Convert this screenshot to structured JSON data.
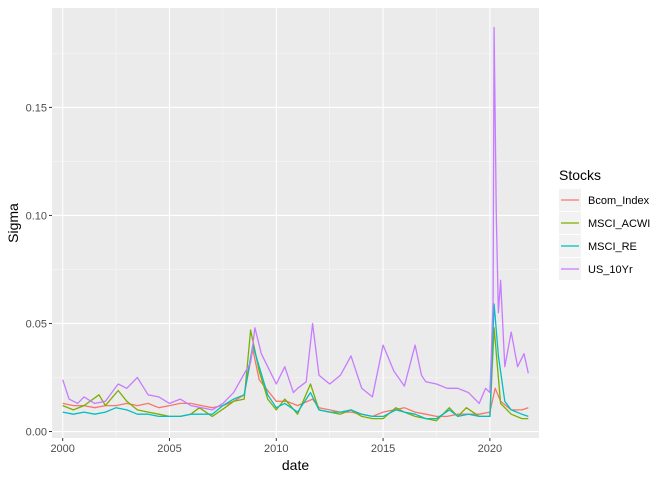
{
  "chart_data": {
    "type": "line",
    "title": "",
    "xlabel": "date",
    "ylabel": "Sigma",
    "xlim": [
      1999.5,
      2022.3
    ],
    "ylim": [
      -0.003,
      0.196
    ],
    "x_ticks": [
      2000,
      2005,
      2010,
      2015,
      2020
    ],
    "x_tick_labels": [
      "2000",
      "2005",
      "2010",
      "2015",
      "2020"
    ],
    "y_ticks": [
      0.0,
      0.05,
      0.1,
      0.15
    ],
    "y_tick_labels": [
      "0.00",
      "0.05",
      "0.10",
      "0.15"
    ],
    "grid": true,
    "legend": {
      "title": "Stocks",
      "placement": "right",
      "entries": [
        "Bcom_Index",
        "MSCI_ACWI",
        "MSCI_RE",
        "US_10Yr"
      ]
    },
    "series": [
      {
        "name": "Bcom_Index",
        "color": "#F8766D",
        "x": [
          2000.0,
          2000.5,
          2001.0,
          2001.5,
          2002.0,
          2002.5,
          2003.0,
          2003.5,
          2004.0,
          2004.5,
          2005.0,
          2005.5,
          2006.0,
          2006.5,
          2007.0,
          2007.5,
          2008.0,
          2008.5,
          2008.9,
          2009.2,
          2009.6,
          2010.0,
          2010.5,
          2011.0,
          2011.7,
          2012.0,
          2012.5,
          2013.0,
          2013.5,
          2014.0,
          2014.5,
          2015.0,
          2015.5,
          2016.0,
          2016.5,
          2017.0,
          2017.5,
          2018.0,
          2018.5,
          2019.0,
          2019.5,
          2020.0,
          2020.25,
          2020.5,
          2021.0,
          2021.5,
          2021.8
        ],
        "y": [
          0.013,
          0.012,
          0.012,
          0.011,
          0.012,
          0.012,
          0.013,
          0.012,
          0.013,
          0.011,
          0.012,
          0.013,
          0.013,
          0.012,
          0.011,
          0.012,
          0.014,
          0.017,
          0.038,
          0.024,
          0.019,
          0.014,
          0.014,
          0.012,
          0.015,
          0.011,
          0.01,
          0.009,
          0.009,
          0.008,
          0.007,
          0.009,
          0.01,
          0.011,
          0.009,
          0.008,
          0.007,
          0.007,
          0.008,
          0.008,
          0.008,
          0.009,
          0.02,
          0.014,
          0.01,
          0.01,
          0.011
        ]
      },
      {
        "name": "MSCI_ACWI",
        "color": "#7CAE00",
        "x": [
          2000.0,
          2000.5,
          2001.0,
          2001.7,
          2002.0,
          2002.6,
          2003.0,
          2003.5,
          2004.0,
          2004.5,
          2005.0,
          2005.5,
          2006.0,
          2006.4,
          2007.0,
          2007.6,
          2008.0,
          2008.5,
          2008.8,
          2009.2,
          2009.6,
          2010.0,
          2010.4,
          2011.0,
          2011.6,
          2012.0,
          2012.5,
          2013.0,
          2013.5,
          2014.0,
          2014.5,
          2015.0,
          2015.6,
          2016.0,
          2016.5,
          2017.0,
          2017.5,
          2018.1,
          2018.5,
          2018.9,
          2019.5,
          2020.0,
          2020.2,
          2020.5,
          2021.0,
          2021.5,
          2021.8
        ],
        "y": [
          0.012,
          0.01,
          0.012,
          0.017,
          0.012,
          0.019,
          0.014,
          0.01,
          0.009,
          0.008,
          0.007,
          0.007,
          0.008,
          0.011,
          0.007,
          0.011,
          0.014,
          0.015,
          0.047,
          0.028,
          0.015,
          0.01,
          0.015,
          0.008,
          0.022,
          0.01,
          0.009,
          0.008,
          0.01,
          0.007,
          0.006,
          0.006,
          0.011,
          0.009,
          0.007,
          0.006,
          0.005,
          0.011,
          0.007,
          0.011,
          0.007,
          0.007,
          0.048,
          0.013,
          0.008,
          0.006,
          0.006
        ]
      },
      {
        "name": "MSCI_RE",
        "color": "#00BFC4",
        "x": [
          2000.0,
          2000.5,
          2001.0,
          2001.5,
          2002.0,
          2002.5,
          2003.0,
          2003.5,
          2004.0,
          2004.5,
          2005.0,
          2005.5,
          2006.0,
          2006.5,
          2007.0,
          2007.5,
          2008.0,
          2008.5,
          2008.9,
          2009.2,
          2009.6,
          2010.0,
          2010.4,
          2011.0,
          2011.6,
          2012.0,
          2012.5,
          2013.0,
          2013.5,
          2014.0,
          2014.5,
          2015.0,
          2015.6,
          2016.0,
          2016.5,
          2017.0,
          2017.5,
          2018.1,
          2018.5,
          2019.0,
          2019.5,
          2020.0,
          2020.2,
          2020.4,
          2020.7,
          2021.0,
          2021.5,
          2021.8
        ],
        "y": [
          0.009,
          0.008,
          0.009,
          0.008,
          0.009,
          0.011,
          0.01,
          0.008,
          0.008,
          0.007,
          0.007,
          0.007,
          0.008,
          0.008,
          0.008,
          0.012,
          0.015,
          0.017,
          0.04,
          0.03,
          0.017,
          0.011,
          0.013,
          0.009,
          0.018,
          0.01,
          0.009,
          0.009,
          0.01,
          0.008,
          0.007,
          0.007,
          0.01,
          0.009,
          0.008,
          0.006,
          0.006,
          0.01,
          0.007,
          0.008,
          0.007,
          0.007,
          0.059,
          0.035,
          0.014,
          0.01,
          0.008,
          0.007
        ]
      },
      {
        "name": "US_10Yr",
        "color": "#C77CFF",
        "x": [
          2000.0,
          2000.3,
          2000.7,
          2001.0,
          2001.5,
          2002.0,
          2002.6,
          2003.0,
          2003.5,
          2004.0,
          2004.5,
          2005.0,
          2005.5,
          2006.0,
          2006.5,
          2007.0,
          2007.5,
          2008.0,
          2008.4,
          2008.8,
          2009.0,
          2009.3,
          2009.6,
          2010.0,
          2010.4,
          2010.8,
          2011.0,
          2011.4,
          2011.7,
          2012.0,
          2012.5,
          2013.0,
          2013.5,
          2014.0,
          2014.5,
          2015.0,
          2015.5,
          2016.0,
          2016.5,
          2016.8,
          2017.0,
          2017.5,
          2018.0,
          2018.5,
          2019.0,
          2019.5,
          2019.8,
          2020.0,
          2020.15,
          2020.2,
          2020.3,
          2020.4,
          2020.5,
          2020.7,
          2021.0,
          2021.3,
          2021.6,
          2021.8
        ],
        "y": [
          0.024,
          0.015,
          0.013,
          0.016,
          0.013,
          0.014,
          0.022,
          0.02,
          0.025,
          0.017,
          0.016,
          0.013,
          0.015,
          0.012,
          0.011,
          0.01,
          0.013,
          0.018,
          0.025,
          0.032,
          0.048,
          0.036,
          0.03,
          0.022,
          0.03,
          0.018,
          0.02,
          0.023,
          0.05,
          0.026,
          0.022,
          0.026,
          0.035,
          0.02,
          0.016,
          0.04,
          0.028,
          0.021,
          0.04,
          0.026,
          0.023,
          0.022,
          0.02,
          0.02,
          0.018,
          0.013,
          0.02,
          0.018,
          0.06,
          0.187,
          0.1,
          0.055,
          0.07,
          0.03,
          0.046,
          0.03,
          0.036,
          0.027
        ]
      }
    ]
  }
}
